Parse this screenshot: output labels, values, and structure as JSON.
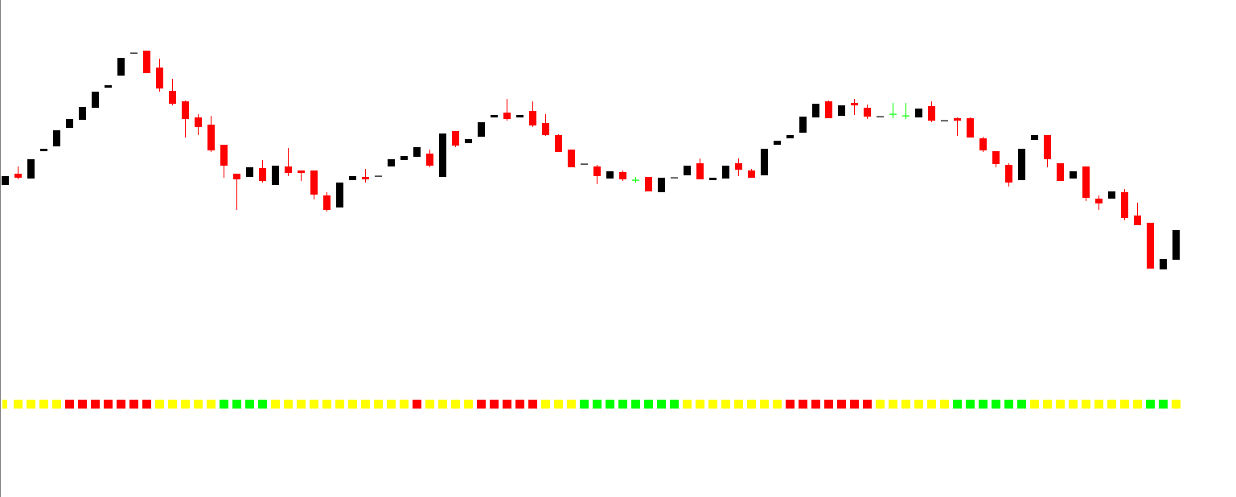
{
  "chart_data": [
    {
      "type": "candlestick",
      "title": "",
      "xlabel": "",
      "ylabel": "",
      "grid": false,
      "colors": {
        "bullish": "#000000",
        "bearish": "#ff0000",
        "doji": "#00ff00"
      },
      "fields": [
        "open",
        "high",
        "low",
        "close"
      ],
      "candles": [
        [
          1.117,
          1.1181,
          1.117,
          1.1181
        ],
        [
          1.1184,
          1.1193,
          1.1177,
          1.1179
        ],
        [
          1.1178,
          1.1202,
          1.1178,
          1.1202
        ],
        [
          1.1212,
          1.1215,
          1.1212,
          1.1215
        ],
        [
          1.1218,
          1.1238,
          1.1218,
          1.1238
        ],
        [
          1.1241,
          1.1252,
          1.1241,
          1.1252
        ],
        [
          1.1251,
          1.1267,
          1.1251,
          1.1267
        ],
        [
          1.1266,
          1.1286,
          1.1266,
          1.1286
        ],
        [
          1.1291,
          1.1294,
          1.1291,
          1.1294
        ],
        [
          1.1306,
          1.1328,
          1.1306,
          1.1328
        ],
        [
          1.1334,
          1.1334,
          1.1334,
          1.1334
        ],
        [
          1.1337,
          1.1337,
          1.1309,
          1.1309
        ],
        [
          1.1316,
          1.1327,
          1.1286,
          1.129
        ],
        [
          1.1287,
          1.1302,
          1.1269,
          1.1271
        ],
        [
          1.1274,
          1.1275,
          1.1229,
          1.1252
        ],
        [
          1.1254,
          1.1258,
          1.1232,
          1.1242
        ],
        [
          1.1245,
          1.1256,
          1.1211,
          1.1213
        ],
        [
          1.122,
          1.122,
          1.1179,
          1.1194
        ],
        [
          1.1184,
          1.1184,
          1.1139,
          1.1177
        ],
        [
          1.118,
          1.1192,
          1.118,
          1.1192
        ],
        [
          1.1191,
          1.1201,
          1.1173,
          1.1175
        ],
        [
          1.117,
          1.1194,
          1.117,
          1.1194
        ],
        [
          1.1193,
          1.1216,
          1.1181,
          1.1185
        ],
        [
          1.1188,
          1.1188,
          1.1175,
          1.1185
        ],
        [
          1.1188,
          1.1188,
          1.1152,
          1.1158
        ],
        [
          1.1157,
          1.1161,
          1.1137,
          1.1139
        ],
        [
          1.1142,
          1.1173,
          1.1142,
          1.1173
        ],
        [
          1.1176,
          1.1181,
          1.1176,
          1.1181
        ],
        [
          1.118,
          1.119,
          1.1173,
          1.1177
        ],
        [
          1.1181,
          1.1181,
          1.1181,
          1.1181
        ],
        [
          1.1193,
          1.1202,
          1.1193,
          1.1202
        ],
        [
          1.1201,
          1.1206,
          1.1201,
          1.1206
        ],
        [
          1.1205,
          1.1217,
          1.1205,
          1.1217
        ],
        [
          1.1209,
          1.1214,
          1.1192,
          1.1194
        ],
        [
          1.118,
          1.1234,
          1.118,
          1.1234
        ],
        [
          1.1237,
          1.1237,
          1.1217,
          1.1219
        ],
        [
          1.1222,
          1.1227,
          1.1222,
          1.1227
        ],
        [
          1.123,
          1.1248,
          1.123,
          1.1248
        ],
        [
          1.1254,
          1.1257,
          1.1254,
          1.1257
        ],
        [
          1.126,
          1.1277,
          1.125,
          1.1252
        ],
        [
          1.1254,
          1.1257,
          1.1254,
          1.1257
        ],
        [
          1.1262,
          1.1274,
          1.1242,
          1.1244
        ],
        [
          1.1247,
          1.1258,
          1.1231,
          1.1232
        ],
        [
          1.1232,
          1.1233,
          1.1211,
          1.1211
        ],
        [
          1.1214,
          1.1214,
          1.1192,
          1.1192
        ],
        [
          1.1196,
          1.1196,
          1.1196,
          1.1196
        ],
        [
          1.1193,
          1.1195,
          1.1171,
          1.1181
        ],
        [
          1.1178,
          1.1187,
          1.1178,
          1.1187
        ],
        [
          1.1186,
          1.1188,
          1.1175,
          1.1177
        ],
        [
          1.1176,
          1.118,
          1.1173,
          1.1176
        ],
        [
          1.118,
          1.118,
          1.1162,
          1.1162
        ],
        [
          1.1161,
          1.1179,
          1.1161,
          1.1179
        ],
        [
          1.1179,
          1.1179,
          1.1179,
          1.1179
        ],
        [
          1.1182,
          1.1194,
          1.1182,
          1.1194
        ],
        [
          1.1197,
          1.1203,
          1.1177,
          1.1177
        ],
        [
          1.1176,
          1.1179,
          1.1176,
          1.1179
        ],
        [
          1.1178,
          1.1194,
          1.1178,
          1.1194
        ],
        [
          1.1197,
          1.1203,
          1.1181,
          1.1189
        ],
        [
          1.1188,
          1.119,
          1.1179,
          1.1179
        ],
        [
          1.1182,
          1.1215,
          1.1182,
          1.1215
        ],
        [
          1.122,
          1.1225,
          1.122,
          1.1225
        ],
        [
          1.1228,
          1.1232,
          1.1228,
          1.1232
        ],
        [
          1.1235,
          1.1255,
          1.1235,
          1.1255
        ],
        [
          1.1254,
          1.1271,
          1.1254,
          1.1271
        ],
        [
          1.1274,
          1.1275,
          1.1253,
          1.1253
        ],
        [
          1.1256,
          1.1269,
          1.1256,
          1.1269
        ],
        [
          1.1272,
          1.1277,
          1.1257,
          1.1269
        ],
        [
          1.1266,
          1.127,
          1.1252,
          1.1255
        ],
        [
          1.1255,
          1.1255,
          1.1255,
          1.1255
        ],
        [
          1.1258,
          1.1272,
          1.1253,
          1.1258
        ],
        [
          1.1256,
          1.1272,
          1.1252,
          1.1256
        ],
        [
          1.1254,
          1.1265,
          1.1254,
          1.1265
        ],
        [
          1.1268,
          1.1274,
          1.1248,
          1.125
        ],
        [
          1.125,
          1.125,
          1.125,
          1.125
        ],
        [
          1.1253,
          1.1254,
          1.1231,
          1.125
        ],
        [
          1.1253,
          1.1254,
          1.1229,
          1.1229
        ],
        [
          1.1228,
          1.123,
          1.1211,
          1.1213
        ],
        [
          1.1212,
          1.1212,
          1.1192,
          1.1196
        ],
        [
          1.1195,
          1.1197,
          1.1168,
          1.1173
        ],
        [
          1.1176,
          1.1215,
          1.1176,
          1.1215
        ],
        [
          1.1226,
          1.1232,
          1.1226,
          1.1232
        ],
        [
          1.1232,
          1.1232,
          1.1192,
          1.1202
        ],
        [
          1.1197,
          1.1197,
          1.1175,
          1.1175
        ],
        [
          1.1178,
          1.1187,
          1.1178,
          1.1187
        ],
        [
          1.1193,
          1.1193,
          1.115,
          1.1154
        ],
        [
          1.1153,
          1.1157,
          1.1139,
          1.1147
        ],
        [
          1.1153,
          1.1162,
          1.1153,
          1.1162
        ],
        [
          1.1161,
          1.1165,
          1.1126,
          1.1129
        ],
        [
          1.1132,
          1.1148,
          1.112,
          1.112
        ],
        [
          1.1123,
          1.1123,
          1.1066,
          1.1066
        ],
        [
          1.1065,
          1.1078,
          1.1065,
          1.1078
        ],
        [
          1.1077,
          1.1114,
          1.1077,
          1.1114
        ]
      ]
    },
    {
      "type": "indicator-strip",
      "colors": {
        "yellow": "#ffff00",
        "red": "#ff0000",
        "green": "#00ff00"
      },
      "runs": [
        [
          "yellow",
          5
        ],
        [
          "red",
          7
        ],
        [
          "yellow",
          5
        ],
        [
          "green",
          4
        ],
        [
          "yellow",
          11
        ],
        [
          "red",
          1
        ],
        [
          "yellow",
          4
        ],
        [
          "red",
          5
        ],
        [
          "yellow",
          3
        ],
        [
          "green",
          8
        ],
        [
          "yellow",
          8
        ],
        [
          "red",
          7
        ],
        [
          "yellow",
          6
        ],
        [
          "green",
          6
        ],
        [
          "yellow",
          9
        ],
        [
          "green",
          2
        ],
        [
          "yellow",
          1
        ]
      ]
    }
  ]
}
